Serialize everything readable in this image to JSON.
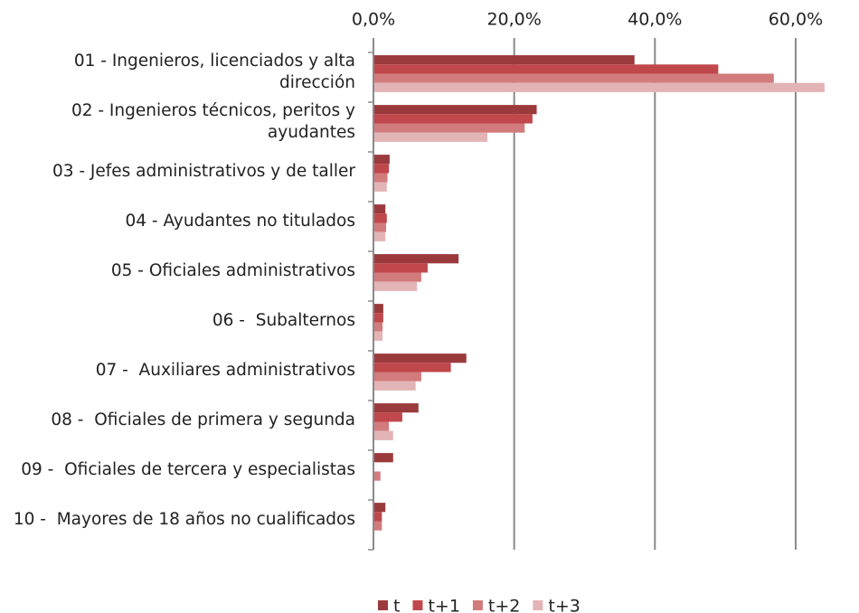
{
  "chart_data": {
    "type": "hbar",
    "categories": [
      "01 - Ingenieros, licenciados y alta dirección",
      "02 - Ingenieros técnicos, peritos y ayudantes",
      "03 - Jefes administrativos y de taller",
      "04 - Ayudantes no titulados",
      "05 - Oficiales administrativos",
      "06 -  Subalternos",
      "07 -  Auxiliares administrativos",
      "08 -  Oficiales de primera y segunda",
      "09 -  Oficiales de tercera y especialistas",
      "10 -  Mayores de 18 años no cualificados"
    ],
    "series": [
      {
        "name": "t",
        "color": "#9b3a3d",
        "values": [
          37.1,
          23.2,
          2.3,
          1.7,
          12.1,
          1.4,
          13.2,
          6.4,
          2.8,
          1.7
        ]
      },
      {
        "name": "t+1",
        "color": "#c0474b",
        "values": [
          49.0,
          22.6,
          2.2,
          1.9,
          7.7,
          1.4,
          11.0,
          4.1,
          0,
          1.2
        ]
      },
      {
        "name": "t+2",
        "color": "#d27b7d",
        "values": [
          56.9,
          21.5,
          2.0,
          1.8,
          6.8,
          1.3,
          6.8,
          2.2,
          1.0,
          1.2
        ]
      },
      {
        "name": "t+3",
        "color": "#e3b4b5",
        "values": [
          64.1,
          16.2,
          1.9,
          1.7,
          6.2,
          1.3,
          6.0,
          2.8,
          0,
          0
        ]
      }
    ],
    "xlim": [
      0,
      69
    ],
    "xticks": [
      {
        "value": 0,
        "label": "0,0%"
      },
      {
        "value": 20,
        "label": "20,0%"
      },
      {
        "value": 40,
        "label": "40,0%"
      },
      {
        "value": 60,
        "label": "60,0%"
      }
    ],
    "grid": true,
    "legend": "bottom"
  }
}
